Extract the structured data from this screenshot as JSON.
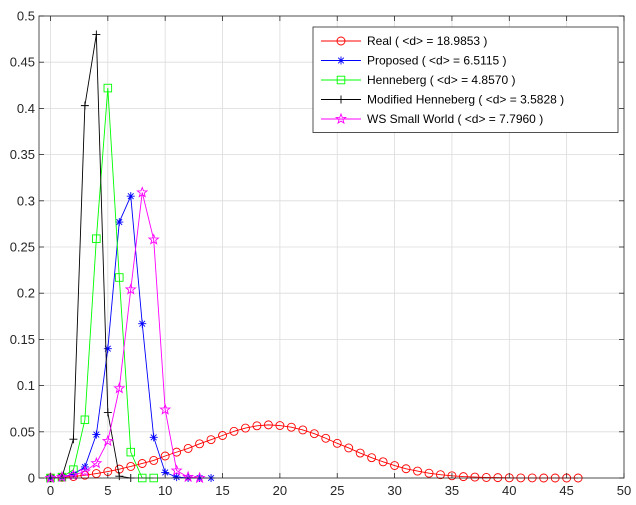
{
  "chart_data": {
    "type": "line",
    "title": "",
    "xlabel": "",
    "ylabel": "",
    "xlim": [
      -1,
      50
    ],
    "ylim": [
      0,
      0.5
    ],
    "grid": true,
    "legend_position": "top-right",
    "x_ticks": [
      "0",
      "5",
      "10",
      "15",
      "20",
      "25",
      "30",
      "35",
      "40",
      "45",
      "50"
    ],
    "y_ticks": [
      "0",
      "0.05",
      "0.1",
      "0.15",
      "0.2",
      "0.25",
      "0.3",
      "0.35",
      "0.4",
      "0.45",
      "0.5"
    ],
    "x_tick_values": [
      0,
      5,
      10,
      15,
      20,
      25,
      30,
      35,
      40,
      45,
      50
    ],
    "y_tick_values": [
      0,
      0.05,
      0.1,
      0.15,
      0.2,
      0.25,
      0.3,
      0.35,
      0.4,
      0.45,
      0.5
    ],
    "series": [
      {
        "name": "Real ( <d> = 18.9853 )",
        "color": "#ff0000",
        "marker": "circle",
        "x": [
          0,
          1,
          2,
          3,
          4,
          5,
          6,
          7,
          8,
          9,
          10,
          11,
          12,
          13,
          14,
          15,
          16,
          17,
          18,
          19,
          20,
          21,
          22,
          23,
          24,
          25,
          26,
          27,
          28,
          29,
          30,
          31,
          32,
          33,
          34,
          35,
          36,
          37,
          38,
          39,
          40,
          41,
          42,
          43,
          44,
          45,
          46
        ],
        "y": [
          0.0002,
          0.0007,
          0.0016,
          0.003,
          0.0048,
          0.007,
          0.0096,
          0.0125,
          0.0157,
          0.019,
          0.0238,
          0.028,
          0.032,
          0.037,
          0.0415,
          0.046,
          0.0505,
          0.054,
          0.0565,
          0.0575,
          0.0568,
          0.055,
          0.052,
          0.048,
          0.043,
          0.0375,
          0.0325,
          0.027,
          0.022,
          0.0175,
          0.0135,
          0.01,
          0.0075,
          0.0052,
          0.0036,
          0.0024,
          0.0015,
          0.001,
          0.0006,
          0.0004,
          0.0002,
          0.0001,
          0.0001,
          0,
          0,
          0,
          0
        ]
      },
      {
        "name": "Proposed ( <d> = 6.5115 )",
        "color": "#0000ff",
        "marker": "asterisk",
        "x": [
          0,
          1,
          2,
          3,
          4,
          5,
          6,
          7,
          8,
          9,
          10,
          11,
          12,
          13,
          14
        ],
        "y": [
          0,
          0.001,
          0.004,
          0.012,
          0.047,
          0.14,
          0.277,
          0.305,
          0.167,
          0.044,
          0.006,
          0.001,
          0,
          0,
          0
        ]
      },
      {
        "name": "Henneberg ( <d> = 4.8570 )",
        "color": "#00ff00",
        "marker": "square",
        "x": [
          0,
          1,
          2,
          3,
          4,
          5,
          6,
          7,
          8,
          9
        ],
        "y": [
          0,
          0.001,
          0.009,
          0.063,
          0.259,
          0.422,
          0.217,
          0.028,
          0,
          0
        ]
      },
      {
        "name": "Modified Henneberg ( <d> = 3.5828 )",
        "color": "#000000",
        "marker": "plus",
        "x": [
          0,
          1,
          2,
          3,
          4,
          5,
          6,
          7
        ],
        "y": [
          0,
          0.001,
          0.042,
          0.403,
          0.48,
          0.071,
          0.002,
          0
        ]
      },
      {
        "name": "WS Small World ( <d> = 7.7960 )",
        "color": "#ff00ff",
        "marker": "star",
        "x": [
          0,
          1,
          2,
          3,
          4,
          5,
          6,
          7,
          8,
          9,
          10,
          11,
          12,
          13
        ],
        "y": [
          0,
          0.001,
          0.003,
          0.007,
          0.016,
          0.04,
          0.097,
          0.204,
          0.309,
          0.258,
          0.074,
          0.008,
          0.001,
          0
        ]
      }
    ]
  }
}
